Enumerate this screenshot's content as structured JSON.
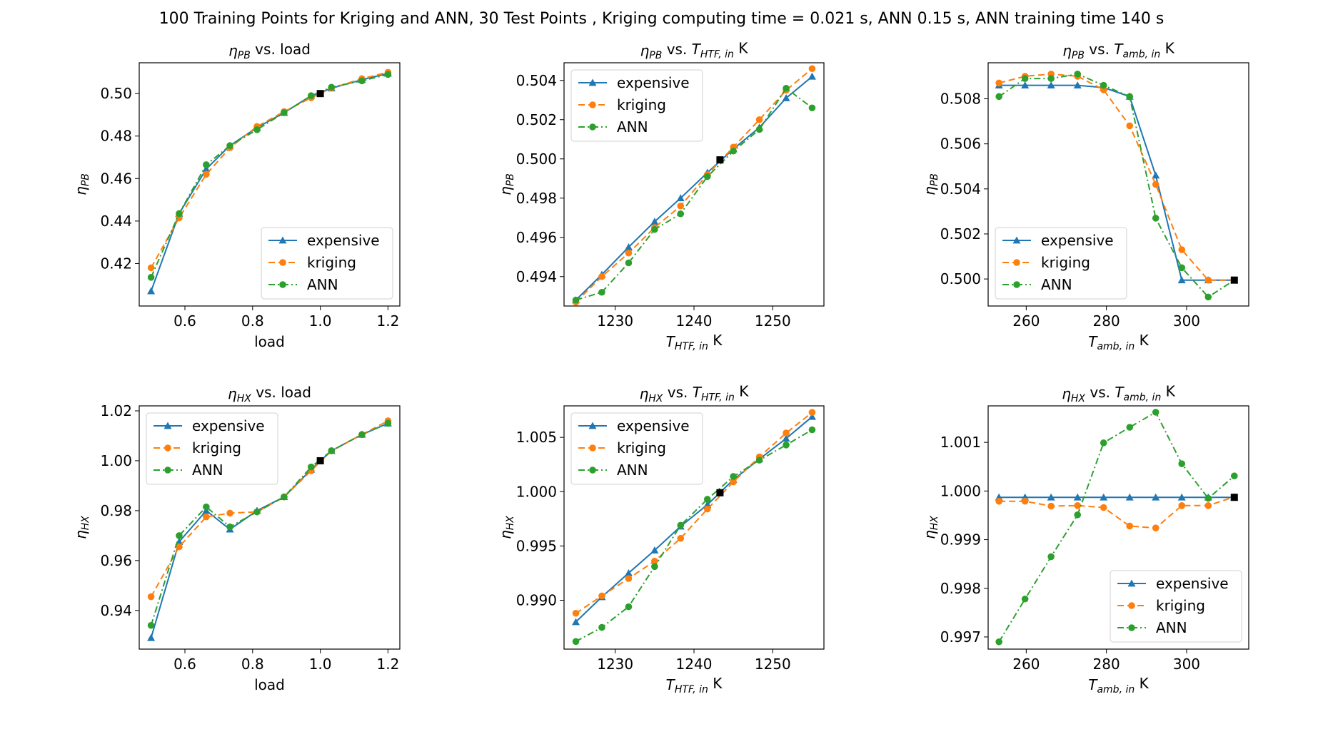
{
  "figure": {
    "suptitle": "100 Training Points for Kriging and ANN, 30 Test Points , Kriging computing time = 0.021 s, ANN 0.15 s, ANN training time 140 s"
  },
  "styles": {
    "expensive": {
      "color": "#1f77b4",
      "marker": "triangle",
      "dash": "solid"
    },
    "kriging": {
      "color": "#ff7f0e",
      "marker": "circle",
      "dash": "dashed"
    },
    "ANN": {
      "color": "#2ca02c",
      "marker": "circle",
      "dash": "dashdot"
    }
  },
  "chart_data": [
    {
      "type": "line",
      "title_html": "<tspan font-style='italic'>η</tspan><tspan font-style='italic' font-size='0.7em' dy='0.3em'>PB</tspan><tspan dy='-0.3em'> vs. load</tspan>",
      "xlabel_html": "load",
      "ylabel_html": "<tspan font-style='italic'>η</tspan><tspan font-style='italic' font-size='0.7em' dy='0.3em'>PB</tspan>",
      "xlim": [
        0.465,
        1.235
      ],
      "ylim": [
        0.4,
        0.5145
      ],
      "xticks": [
        0.6,
        0.8,
        1.0,
        1.2
      ],
      "xticklabels": [
        "0.6",
        "0.8",
        "1.0",
        "1.2"
      ],
      "yticks": [
        0.42,
        0.44,
        0.46,
        0.48,
        0.5
      ],
      "yticklabels": [
        "0.42",
        "0.44",
        "0.46",
        "0.48",
        "0.50"
      ],
      "legend": "lower right",
      "ref_point": [
        1.0,
        0.5
      ],
      "series": [
        {
          "name": "expensive",
          "x": [
            0.5,
            0.583,
            0.663,
            0.733,
            0.813,
            0.893,
            0.973,
            1.033,
            1.123,
            1.2
          ],
          "y": [
            0.407,
            0.4435,
            0.4645,
            0.4755,
            0.484,
            0.491,
            0.499,
            0.5025,
            0.5065,
            0.5095
          ]
        },
        {
          "name": "kriging",
          "x": [
            0.5,
            0.583,
            0.663,
            0.733,
            0.813,
            0.893,
            0.973,
            1.033,
            1.123,
            1.2
          ],
          "y": [
            0.418,
            0.4415,
            0.462,
            0.4745,
            0.4845,
            0.4915,
            0.498,
            0.5025,
            0.507,
            0.51
          ]
        },
        {
          "name": "ANN",
          "x": [
            0.5,
            0.583,
            0.663,
            0.733,
            0.813,
            0.893,
            0.973,
            1.033,
            1.123,
            1.2
          ],
          "y": [
            0.4135,
            0.4435,
            0.4665,
            0.4755,
            0.483,
            0.491,
            0.499,
            0.503,
            0.506,
            0.509
          ]
        }
      ]
    },
    {
      "type": "line",
      "title_html": "<tspan font-style='italic'>η</tspan><tspan font-style='italic' font-size='0.7em' dy='0.3em'>PB</tspan><tspan dy='-0.3em'> vs. </tspan><tspan font-style='italic'>T</tspan><tspan font-style='italic' font-size='0.7em' dy='0.3em'>HTF, in</tspan><tspan dy='-0.3em'> K</tspan>",
      "xlabel_html": "<tspan font-style='italic'>T</tspan><tspan font-style='italic' font-size='0.7em' dy='0.3em'>HTF, in</tspan><tspan dy='-0.3em'> K</tspan>",
      "ylabel_html": "<tspan font-style='italic'>η</tspan><tspan font-style='italic' font-size='0.7em' dy='0.3em'>PB</tspan>",
      "xlim": [
        1223.5,
        1256.5
      ],
      "ylim": [
        0.4925,
        0.5049
      ],
      "xticks": [
        1230,
        1240,
        1250
      ],
      "xticklabels": [
        "1230",
        "1240",
        "1250"
      ],
      "yticks": [
        0.494,
        0.496,
        0.498,
        0.5,
        0.502,
        0.504
      ],
      "yticklabels": [
        "0.494",
        "0.496",
        "0.498",
        "0.500",
        "0.502",
        "0.504"
      ],
      "legend": "upper left",
      "ref_point": [
        1243.3,
        0.49995
      ],
      "series": [
        {
          "name": "expensive",
          "x": [
            1225,
            1228.3,
            1231.7,
            1235,
            1238.3,
            1241.7,
            1245,
            1248.3,
            1251.7,
            1255
          ],
          "y": [
            0.4928,
            0.4941,
            0.4955,
            0.4968,
            0.498,
            0.4993,
            0.5005,
            0.5016,
            0.5031,
            0.5042
          ]
        },
        {
          "name": "kriging",
          "x": [
            1225,
            1228.3,
            1231.7,
            1235,
            1238.3,
            1241.7,
            1245,
            1248.3,
            1251.7,
            1255
          ],
          "y": [
            0.4927,
            0.494,
            0.4952,
            0.4965,
            0.4976,
            0.4992,
            0.5006,
            0.502,
            0.5035,
            0.5046
          ]
        },
        {
          "name": "ANN",
          "x": [
            1225,
            1228.3,
            1231.7,
            1235,
            1238.3,
            1241.7,
            1245,
            1248.3,
            1251.7,
            1255
          ],
          "y": [
            0.4928,
            0.4932,
            0.4947,
            0.4964,
            0.4972,
            0.4991,
            0.5004,
            0.5015,
            0.5036,
            0.5026
          ]
        }
      ]
    },
    {
      "type": "line",
      "title_html": "<tspan font-style='italic'>η</tspan><tspan font-style='italic' font-size='0.7em' dy='0.3em'>PB</tspan><tspan dy='-0.3em'> vs. </tspan><tspan font-style='italic'>T</tspan><tspan font-style='italic' font-size='0.7em' dy='0.3em'>amb, in</tspan><tspan dy='-0.3em'> K</tspan>",
      "xlabel_html": "<tspan font-style='italic'>T</tspan><tspan font-style='italic' font-size='0.7em' dy='0.3em'>amb, in</tspan><tspan dy='-0.3em'> K</tspan>",
      "ylabel_html": "<tspan font-style='italic'>η</tspan><tspan font-style='italic' font-size='0.7em' dy='0.3em'>PB</tspan>",
      "xlim": [
        250.5,
        315.5
      ],
      "ylim": [
        0.4988,
        0.5096
      ],
      "xticks": [
        260,
        280,
        300
      ],
      "xticklabels": [
        "260",
        "280",
        "300"
      ],
      "yticks": [
        0.5,
        0.502,
        0.504,
        0.506,
        0.508
      ],
      "yticklabels": [
        "0.500",
        "0.502",
        "0.504",
        "0.506",
        "0.508"
      ],
      "legend": "lower left",
      "ref_point": [
        311.9,
        0.49995
      ],
      "series": [
        {
          "name": "expensive",
          "x": [
            253.2,
            259.7,
            266.2,
            272.8,
            279.3,
            285.8,
            292.3,
            298.8,
            305.4,
            311.9
          ],
          "y": [
            0.5086,
            0.5086,
            0.5086,
            0.5086,
            0.5085,
            0.5081,
            0.5046,
            0.49995,
            0.49995,
            0.49995
          ]
        },
        {
          "name": "kriging",
          "x": [
            253.2,
            259.7,
            266.2,
            272.8,
            279.3,
            285.8,
            292.3,
            298.8,
            305.4,
            311.9
          ],
          "y": [
            0.5087,
            0.509,
            0.5091,
            0.509,
            0.5084,
            0.5068,
            0.5042,
            0.5013,
            0.49995,
            0.49995
          ]
        },
        {
          "name": "ANN",
          "x": [
            253.2,
            259.7,
            266.2,
            272.8,
            279.3,
            285.8,
            292.3,
            298.8,
            305.4,
            311.9
          ],
          "y": [
            0.5081,
            0.5089,
            0.5089,
            0.5091,
            0.5086,
            0.5081,
            0.5027,
            0.5005,
            0.4992,
            0.49995
          ]
        }
      ]
    },
    {
      "type": "line",
      "title_html": "<tspan font-style='italic'>η</tspan><tspan font-style='italic' font-size='0.7em' dy='0.3em'>HX</tspan><tspan dy='-0.3em'> vs. load</tspan>",
      "xlabel_html": "load",
      "ylabel_html": "<tspan font-style='italic'>η</tspan><tspan font-style='italic' font-size='0.7em' dy='0.3em'>HX</tspan>",
      "xlim": [
        0.465,
        1.235
      ],
      "ylim": [
        0.9245,
        1.022
      ],
      "xticks": [
        0.6,
        0.8,
        1.0,
        1.2
      ],
      "xticklabels": [
        "0.6",
        "0.8",
        "1.0",
        "1.2"
      ],
      "yticks": [
        0.94,
        0.96,
        0.98,
        1.0,
        1.02
      ],
      "yticklabels": [
        "0.94",
        "0.96",
        "0.98",
        "1.00",
        "1.02"
      ],
      "legend": "upper left",
      "ref_point": [
        1.0,
        1.0
      ],
      "series": [
        {
          "name": "expensive",
          "x": [
            0.5,
            0.583,
            0.663,
            0.733,
            0.813,
            0.893,
            0.973,
            1.033,
            1.123,
            1.2
          ],
          "y": [
            0.929,
            0.9675,
            0.98,
            0.9725,
            0.98,
            0.9855,
            0.9965,
            1.004,
            1.0105,
            1.015
          ]
        },
        {
          "name": "kriging",
          "x": [
            0.5,
            0.583,
            0.663,
            0.733,
            0.813,
            0.893,
            0.973,
            1.033,
            1.123,
            1.2
          ],
          "y": [
            0.9455,
            0.9655,
            0.9775,
            0.979,
            0.9795,
            0.9855,
            0.996,
            1.004,
            1.0105,
            1.016
          ]
        },
        {
          "name": "ANN",
          "x": [
            0.5,
            0.583,
            0.663,
            0.733,
            0.813,
            0.893,
            0.973,
            1.033,
            1.123,
            1.2
          ],
          "y": [
            0.934,
            0.97,
            0.9815,
            0.9735,
            0.9795,
            0.9855,
            0.9975,
            1.004,
            1.0105,
            1.015
          ]
        }
      ]
    },
    {
      "type": "line",
      "title_html": "<tspan font-style='italic'>η</tspan><tspan font-style='italic' font-size='0.7em' dy='0.3em'>HX</tspan><tspan dy='-0.3em'> vs. </tspan><tspan font-style='italic'>T</tspan><tspan font-style='italic' font-size='0.7em' dy='0.3em'>HTF, in</tspan><tspan dy='-0.3em'> K</tspan>",
      "xlabel_html": "<tspan font-style='italic'>T</tspan><tspan font-style='italic' font-size='0.7em' dy='0.3em'>HTF, in</tspan><tspan dy='-0.3em'> K</tspan>",
      "ylabel_html": "<tspan font-style='italic'>η</tspan><tspan font-style='italic' font-size='0.7em' dy='0.3em'>HX</tspan>",
      "xlim": [
        1223.5,
        1256.5
      ],
      "ylim": [
        0.9855,
        1.0079
      ],
      "xticks": [
        1230,
        1240,
        1250
      ],
      "xticklabels": [
        "1230",
        "1240",
        "1250"
      ],
      "yticks": [
        0.99,
        0.995,
        1.0,
        1.005
      ],
      "yticklabels": [
        "0.990",
        "0.995",
        "1.000",
        "1.005"
      ],
      "legend": "upper left",
      "ref_point": [
        1243.3,
        0.9999
      ],
      "series": [
        {
          "name": "expensive",
          "x": [
            1225,
            1228.3,
            1231.7,
            1235,
            1238.3,
            1241.7,
            1245,
            1248.3,
            1251.7,
            1255
          ],
          "y": [
            0.988,
            0.9903,
            0.9925,
            0.9946,
            0.9968,
            0.9988,
            1.0011,
            1.003,
            1.0049,
            1.0069
          ]
        },
        {
          "name": "kriging",
          "x": [
            1225,
            1228.3,
            1231.7,
            1235,
            1238.3,
            1241.7,
            1245,
            1248.3,
            1251.7,
            1255
          ],
          "y": [
            0.9888,
            0.9904,
            0.992,
            0.9936,
            0.9957,
            0.9984,
            1.0009,
            1.0032,
            1.0054,
            1.0073
          ]
        },
        {
          "name": "ANN",
          "x": [
            1225,
            1228.3,
            1231.7,
            1235,
            1238.3,
            1241.7,
            1245,
            1248.3,
            1251.7,
            1255
          ],
          "y": [
            0.9862,
            0.9875,
            0.9894,
            0.9931,
            0.9969,
            0.9993,
            1.0014,
            1.0029,
            1.0043,
            1.0057
          ]
        }
      ]
    },
    {
      "type": "line",
      "title_html": "<tspan font-style='italic'>η</tspan><tspan font-style='italic' font-size='0.7em' dy='0.3em'>HX</tspan><tspan dy='-0.3em'> vs. </tspan><tspan font-style='italic'>T</tspan><tspan font-style='italic' font-size='0.7em' dy='0.3em'>amb, in</tspan><tspan dy='-0.3em'> K</tspan>",
      "xlabel_html": "<tspan font-style='italic'>T</tspan><tspan font-style='italic' font-size='0.7em' dy='0.3em'>amb, in</tspan><tspan dy='-0.3em'> K</tspan>",
      "ylabel_html": "<tspan font-style='italic'>η</tspan><tspan font-style='italic' font-size='0.7em' dy='0.3em'>HX</tspan>",
      "xlim": [
        250.5,
        315.5
      ],
      "ylim": [
        0.99675,
        1.00175
      ],
      "xticks": [
        260,
        280,
        300
      ],
      "xticklabels": [
        "260",
        "280",
        "300"
      ],
      "yticks": [
        0.997,
        0.998,
        0.999,
        1.0,
        1.001
      ],
      "yticklabels": [
        "0.997",
        "0.998",
        "0.999",
        "1.000",
        "1.001"
      ],
      "legend": "lower right",
      "ref_point": [
        311.9,
        0.99987
      ],
      "series": [
        {
          "name": "expensive",
          "x": [
            253.2,
            259.7,
            266.2,
            272.8,
            279.3,
            285.8,
            292.3,
            298.8,
            305.4,
            311.9
          ],
          "y": [
            0.99987,
            0.99987,
            0.99987,
            0.99987,
            0.99987,
            0.99987,
            0.99987,
            0.99987,
            0.99987,
            0.99987
          ]
        },
        {
          "name": "kriging",
          "x": [
            253.2,
            259.7,
            266.2,
            272.8,
            279.3,
            285.8,
            292.3,
            298.8,
            305.4,
            311.9
          ],
          "y": [
            0.99979,
            0.99979,
            0.99969,
            0.9997,
            0.99966,
            0.99928,
            0.99924,
            0.9997,
            0.9997,
            0.99988
          ]
        },
        {
          "name": "ANN",
          "x": [
            253.2,
            259.7,
            266.2,
            272.8,
            279.3,
            285.8,
            292.3,
            298.8,
            305.4,
            311.9
          ],
          "y": [
            0.9969,
            0.99778,
            0.99865,
            0.99951,
            1.00099,
            1.00131,
            1.00162,
            1.00056,
            0.99985,
            1.00031
          ]
        }
      ]
    }
  ]
}
